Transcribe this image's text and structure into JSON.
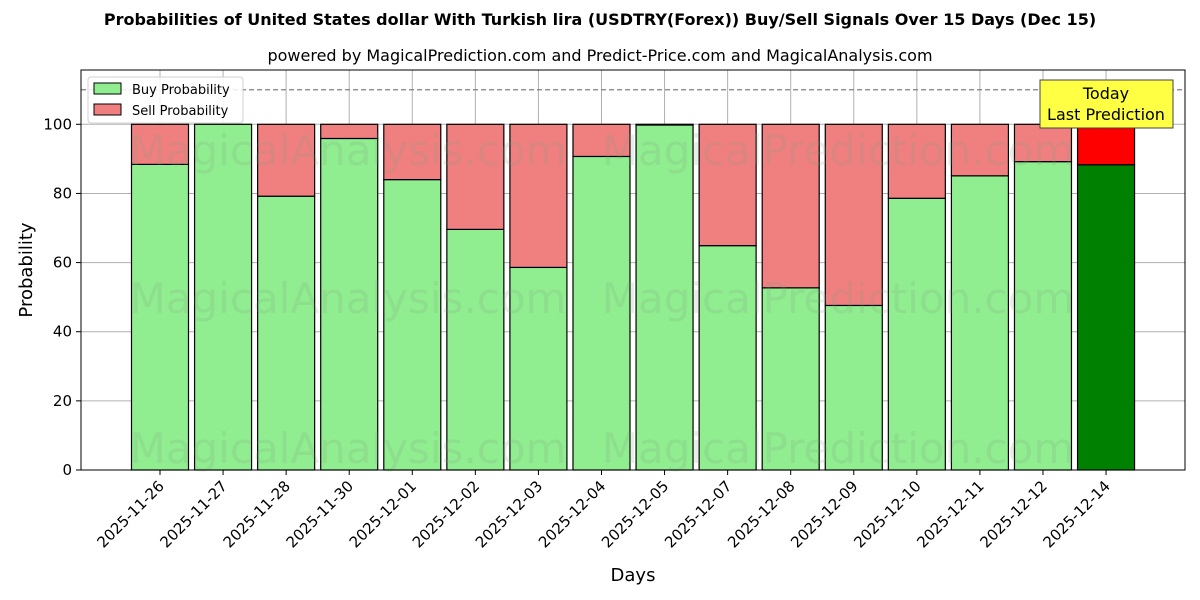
{
  "title": "Probabilities of United States dollar With Turkish lira (USDTRY(Forex)) Buy/Sell Signals Over 15 Days (Dec 15)",
  "subtitle": "powered by MagicalPrediction.com and Predict-Price.com and MagicalAnalysis.com",
  "watermarks": [
    "MagicalAnalysis.com",
    "MagicalPrediction.com"
  ],
  "colors": {
    "buy": "#90ee90",
    "sell": "#f08080",
    "today_buy": "#008000",
    "today_sell": "#ff0000",
    "annotation_bg": "#ffff44",
    "grid": "#b0b0b0"
  },
  "annotation": {
    "line1": "Today",
    "line2": "Last Prediction"
  },
  "chart_data": {
    "type": "bar",
    "stacked": true,
    "title": "Probabilities of United States dollar With Turkish lira (USDTRY(Forex)) Buy/Sell Signals Over 15 Days (Dec 15)",
    "subtitle": "powered by MagicalPrediction.com and Predict-Price.com and MagicalAnalysis.com",
    "xlabel": "Days",
    "ylabel": "Probability",
    "ylim": [
      0,
      115
    ],
    "yticks": [
      0,
      20,
      40,
      60,
      80,
      100
    ],
    "grid": true,
    "legend_position": "upper left",
    "reference_line": {
      "y": 110,
      "style": "dashed"
    },
    "categories": [
      "2025-11-26",
      "2025-11-27",
      "2025-11-28",
      "2025-11-30",
      "2025-12-01",
      "2025-12-02",
      "2025-12-03",
      "2025-12-04",
      "2025-12-05",
      "2025-12-07",
      "2025-12-08",
      "2025-12-09",
      "2025-12-10",
      "2025-12-11",
      "2025-12-12",
      "2025-12-14"
    ],
    "series": [
      {
        "name": "Buy Probability",
        "values": [
          88.4,
          100.0,
          79.2,
          95.9,
          84.0,
          69.6,
          58.6,
          90.7,
          99.8,
          64.9,
          52.7,
          47.6,
          78.6,
          85.1,
          89.2,
          88.3
        ]
      },
      {
        "name": "Sell Probability",
        "values": [
          11.6,
          0.0,
          20.8,
          4.1,
          16.0,
          30.4,
          41.4,
          9.3,
          0.2,
          35.1,
          47.3,
          52.4,
          21.4,
          14.9,
          10.8,
          11.7
        ]
      }
    ],
    "highlight": {
      "index": 15,
      "label": "Today Last Prediction"
    }
  }
}
